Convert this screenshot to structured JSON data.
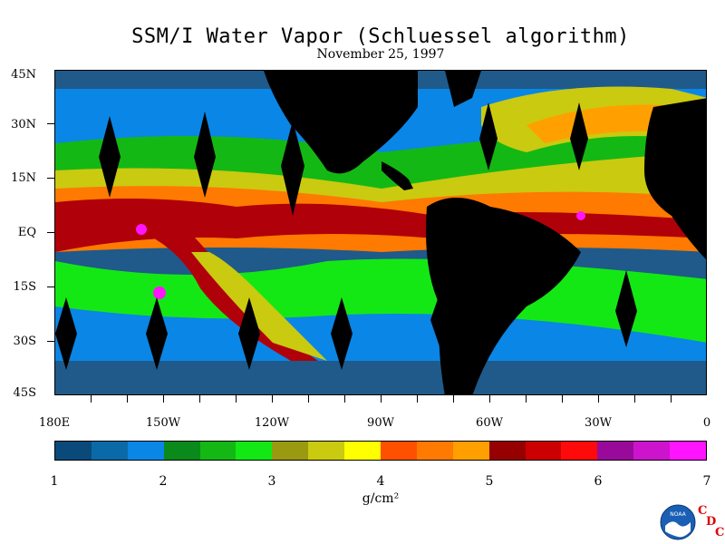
{
  "title": "SSM/I Water Vapor (Schluessel algorithm)",
  "subtitle": "November 25, 1997",
  "y_axis": [
    "45N",
    "30N",
    "15N",
    "EQ",
    "15S",
    "30S",
    "45S"
  ],
  "x_axis": [
    "180E",
    "150W",
    "120W",
    "90W",
    "60W",
    "30W",
    "0"
  ],
  "colorbar": {
    "colors": [
      "#0a4a7a",
      "#0a6aa8",
      "#0a86e6",
      "#0a8a1a",
      "#14b814",
      "#14e814",
      "#9a9a10",
      "#caca10",
      "#ffff00",
      "#ff5000",
      "#ff7a00",
      "#ffa000",
      "#960000",
      "#cc0000",
      "#ff0a0a",
      "#9a0a9a",
      "#cc14cc",
      "#ff14ff"
    ],
    "ticks": [
      "1",
      "2",
      "3",
      "4",
      "5",
      "6",
      "7"
    ],
    "units": "g/cm²"
  },
  "logo": {
    "name": "NOAA",
    "badge": "noaa-icon",
    "letters": [
      "C",
      "D",
      "C"
    ]
  },
  "map_colors": {
    "ocean_low": "#1f5a8a",
    "ocean_mid": "#0a86e6",
    "green_low": "#14b814",
    "green_high": "#14e814",
    "olive": "#caca10",
    "yellow": "#ffff00",
    "orange": "#ff7a00",
    "orange_red": "#ff5000",
    "dark_red": "#b0000a",
    "magenta": "#ff14ff",
    "land": "#000000"
  }
}
